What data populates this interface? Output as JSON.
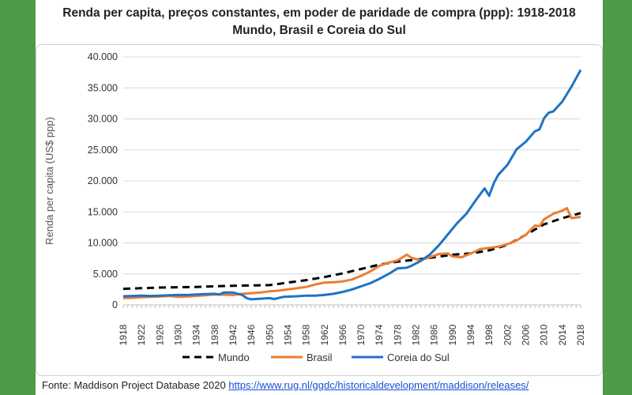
{
  "chart_data": {
    "type": "line",
    "title_line1": "Renda per capita, preços constantes, em poder de paridade de compra (ppp): 1918-2018",
    "title_line2": "Mundo, Brasil e Coreia do Sul",
    "ylabel": "Renda per capita (US$ ppp)",
    "xlabel": "",
    "xlim": [
      1918,
      2018
    ],
    "ylim": [
      0,
      40000
    ],
    "yticks": [
      0,
      5000,
      10000,
      15000,
      20000,
      25000,
      30000,
      35000,
      40000
    ],
    "ytick_labels": [
      "0",
      "5.000",
      "10.000",
      "15.000",
      "20.000",
      "25.000",
      "30.000",
      "35.000",
      "40.000"
    ],
    "xticks": [
      1918,
      1922,
      1926,
      1930,
      1934,
      1938,
      1942,
      1946,
      1950,
      1954,
      1958,
      1962,
      1966,
      1970,
      1974,
      1978,
      1982,
      1986,
      1990,
      1994,
      1998,
      2002,
      2006,
      2010,
      2014,
      2018
    ],
    "grid": "horizontal",
    "legend_position": "bottom",
    "series": [
      {
        "name": "Mundo",
        "color": "#000000",
        "style": "dashed",
        "points": [
          [
            1918,
            2600
          ],
          [
            1922,
            2700
          ],
          [
            1926,
            2800
          ],
          [
            1930,
            2850
          ],
          [
            1934,
            2900
          ],
          [
            1938,
            3000
          ],
          [
            1942,
            3100
          ],
          [
            1946,
            3150
          ],
          [
            1950,
            3200
          ],
          [
            1954,
            3600
          ],
          [
            1958,
            4000
          ],
          [
            1962,
            4500
          ],
          [
            1966,
            5100
          ],
          [
            1970,
            5800
          ],
          [
            1974,
            6500
          ],
          [
            1978,
            7000
          ],
          [
            1982,
            7300
          ],
          [
            1986,
            7700
          ],
          [
            1990,
            8100
          ],
          [
            1994,
            8300
          ],
          [
            1998,
            8800
          ],
          [
            2002,
            9700
          ],
          [
            2006,
            11300
          ],
          [
            2010,
            13000
          ],
          [
            2014,
            14000
          ],
          [
            2018,
            14800
          ]
        ]
      },
      {
        "name": "Brasil",
        "color": "#ed7d31",
        "style": "solid",
        "points": [
          [
            1918,
            1100
          ],
          [
            1920,
            1150
          ],
          [
            1922,
            1250
          ],
          [
            1924,
            1300
          ],
          [
            1926,
            1350
          ],
          [
            1928,
            1450
          ],
          [
            1930,
            1300
          ],
          [
            1932,
            1350
          ],
          [
            1934,
            1450
          ],
          [
            1936,
            1550
          ],
          [
            1938,
            1700
          ],
          [
            1940,
            1650
          ],
          [
            1942,
            1600
          ],
          [
            1944,
            1800
          ],
          [
            1946,
            1900
          ],
          [
            1948,
            2000
          ],
          [
            1950,
            2200
          ],
          [
            1952,
            2300
          ],
          [
            1954,
            2500
          ],
          [
            1956,
            2700
          ],
          [
            1958,
            2900
          ],
          [
            1960,
            3300
          ],
          [
            1962,
            3600
          ],
          [
            1964,
            3650
          ],
          [
            1966,
            3800
          ],
          [
            1968,
            4100
          ],
          [
            1970,
            4700
          ],
          [
            1972,
            5400
          ],
          [
            1974,
            6300
          ],
          [
            1976,
            6800
          ],
          [
            1978,
            7200
          ],
          [
            1980,
            8100
          ],
          [
            1981,
            7600
          ],
          [
            1983,
            7200
          ],
          [
            1985,
            7700
          ],
          [
            1987,
            8200
          ],
          [
            1989,
            8300
          ],
          [
            1990,
            7800
          ],
          [
            1992,
            7700
          ],
          [
            1994,
            8300
          ],
          [
            1996,
            9000
          ],
          [
            1998,
            9200
          ],
          [
            2000,
            9400
          ],
          [
            2002,
            9800
          ],
          [
            2004,
            10400
          ],
          [
            2006,
            11300
          ],
          [
            2008,
            12800
          ],
          [
            2009,
            12700
          ],
          [
            2010,
            13800
          ],
          [
            2012,
            14700
          ],
          [
            2014,
            15200
          ],
          [
            2015,
            15600
          ],
          [
            2016,
            14000
          ],
          [
            2018,
            14200
          ]
        ]
      },
      {
        "name": "Coreia do Sul",
        "color": "#1f73c4",
        "style": "solid",
        "points": [
          [
            1918,
            1400
          ],
          [
            1920,
            1450
          ],
          [
            1922,
            1500
          ],
          [
            1924,
            1450
          ],
          [
            1926,
            1500
          ],
          [
            1928,
            1550
          ],
          [
            1930,
            1600
          ],
          [
            1932,
            1600
          ],
          [
            1934,
            1700
          ],
          [
            1936,
            1750
          ],
          [
            1938,
            1800
          ],
          [
            1939,
            1700
          ],
          [
            1940,
            2000
          ],
          [
            1942,
            2000
          ],
          [
            1944,
            1600
          ],
          [
            1945,
            1100
          ],
          [
            1946,
            900
          ],
          [
            1948,
            1000
          ],
          [
            1950,
            1100
          ],
          [
            1951,
            950
          ],
          [
            1953,
            1300
          ],
          [
            1956,
            1400
          ],
          [
            1958,
            1500
          ],
          [
            1960,
            1500
          ],
          [
            1962,
            1600
          ],
          [
            1964,
            1800
          ],
          [
            1966,
            2100
          ],
          [
            1968,
            2500
          ],
          [
            1970,
            3000
          ],
          [
            1972,
            3500
          ],
          [
            1974,
            4200
          ],
          [
            1976,
            5000
          ],
          [
            1978,
            5900
          ],
          [
            1980,
            6000
          ],
          [
            1981,
            6300
          ],
          [
            1983,
            7100
          ],
          [
            1985,
            8100
          ],
          [
            1987,
            9600
          ],
          [
            1989,
            11400
          ],
          [
            1991,
            13200
          ],
          [
            1993,
            14700
          ],
          [
            1995,
            16800
          ],
          [
            1997,
            18800
          ],
          [
            1998,
            17600
          ],
          [
            1999,
            19600
          ],
          [
            2000,
            21000
          ],
          [
            2002,
            22600
          ],
          [
            2004,
            25100
          ],
          [
            2006,
            26300
          ],
          [
            2008,
            28000
          ],
          [
            2009,
            28300
          ],
          [
            2010,
            30100
          ],
          [
            2011,
            31000
          ],
          [
            2012,
            31200
          ],
          [
            2014,
            32800
          ],
          [
            2016,
            35200
          ],
          [
            2018,
            37900
          ]
        ]
      }
    ]
  },
  "source": {
    "label": "Fonte: Maddison Project Database 2020",
    "url": "https://www.rug.nl/ggdc/historicaldevelopment/maddison/releases/"
  }
}
